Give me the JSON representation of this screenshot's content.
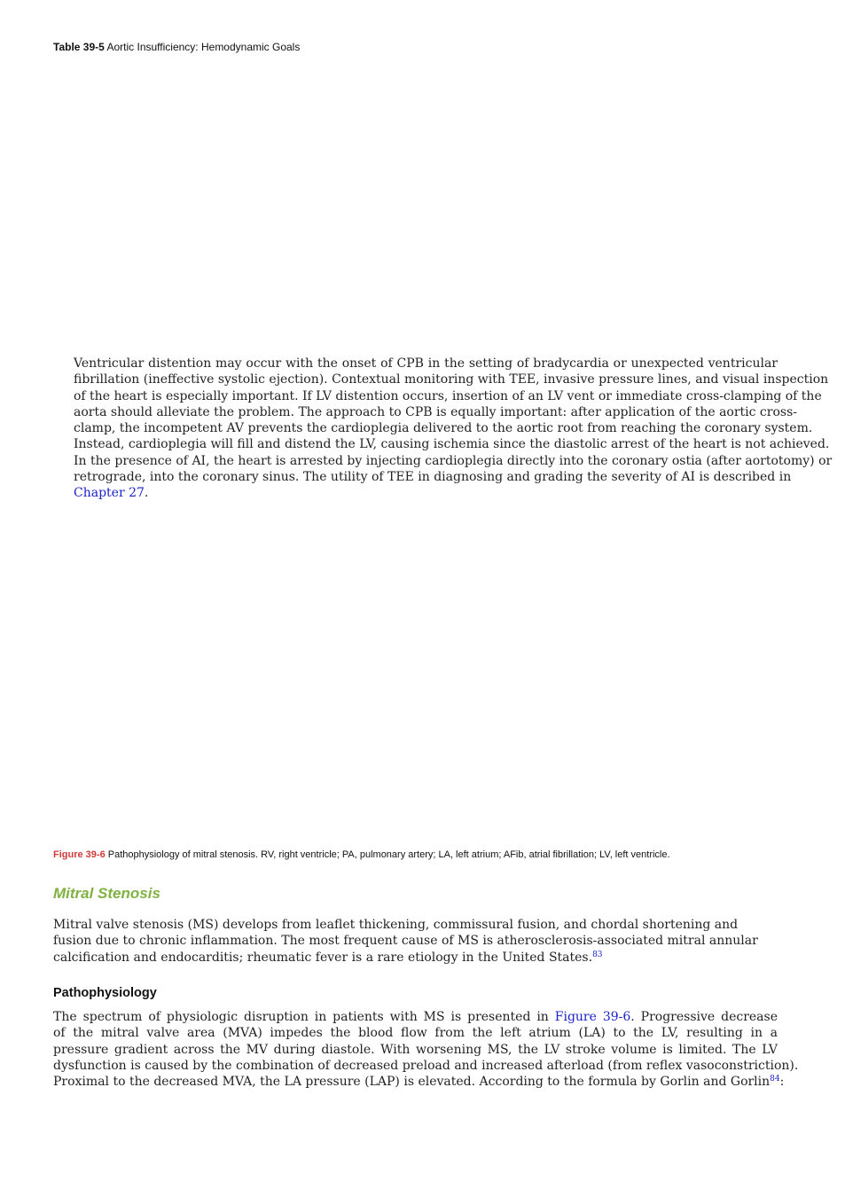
{
  "table_caption": {
    "number": "Table 39-5",
    "title": "Aortic Insufficiency: Hemodynamic Goals"
  },
  "distention_paragraph": {
    "lines": [
      "Ventricular distention may occur with the onset of CPB in the setting of bradycardia or unexpected ventricular",
      "fibrillation (ineffective systolic ejection). Contextual monitoring with TEE, invasive pressure lines, and visual inspection",
      "of the heart is especially important. If LV distention occurs, insertion of an LV vent or immediate cross-clamping of the",
      "aorta should alleviate the problem. The approach to CPB is equally important: after application of the aortic cross-",
      "clamp, the incompetent AV prevents the cardioplegia delivered to the aortic root from reaching the coronary system.",
      "Instead, cardioplegia will fill and distend the LV, causing ischemia since the diastolic arrest of the heart is not achieved.",
      "In the presence of AI, the heart is arrested by injecting cardioplegia directly into the coronary ostia (after aortotomy) or",
      "retrograde, into the coronary sinus. The utility of TEE in diagnosing and grading the severity of AI is described in"
    ],
    "chapter_link": "Chapter 27",
    "end_punct": "."
  },
  "figure_caption": {
    "number": "Figure 39-6",
    "text": "Pathophysiology of mitral stenosis. RV, right ventricle; PA, pulmonary artery; LA, left atrium; AFib, atrial fibrillation; LV, left ventricle."
  },
  "mitral_section": {
    "heading": "Mitral Stenosis",
    "lines": [
      "Mitral valve stenosis (MS) develops from leaflet thickening, commissural fusion, and chordal shortening and",
      "fusion due to chronic inflammation. The most frequent cause of MS is atherosclerosis-associated mitral annular"
    ],
    "last_line": "calcification and endocarditis; rheumatic fever is a rare etiology in the United States.",
    "ref": "83"
  },
  "pathophysiology_section": {
    "heading": "Pathophysiology",
    "line1_start": "The spectrum of physiologic disruption in patients with MS is presented in ",
    "figure_link": "Figure 39-6",
    "line1_end": ". Progressive decrease",
    "lines": [
      "of the mitral valve area (MVA) impedes the blood flow from the left atrium (LA) to the LV, resulting in a",
      "pressure gradient across the MV during diastole. With worsening MS, the LV stroke volume is limited. The LV",
      "dysfunction is caused by the combination of decreased preload and increased afterload (from reflex vasoconstriction)."
    ],
    "last_line": "Proximal to the decreased MVA, the LA pressure (LAP) is elevated. According to the formula by Gorlin and Gorlin",
    "ref": "84",
    "end_punct": ":"
  }
}
